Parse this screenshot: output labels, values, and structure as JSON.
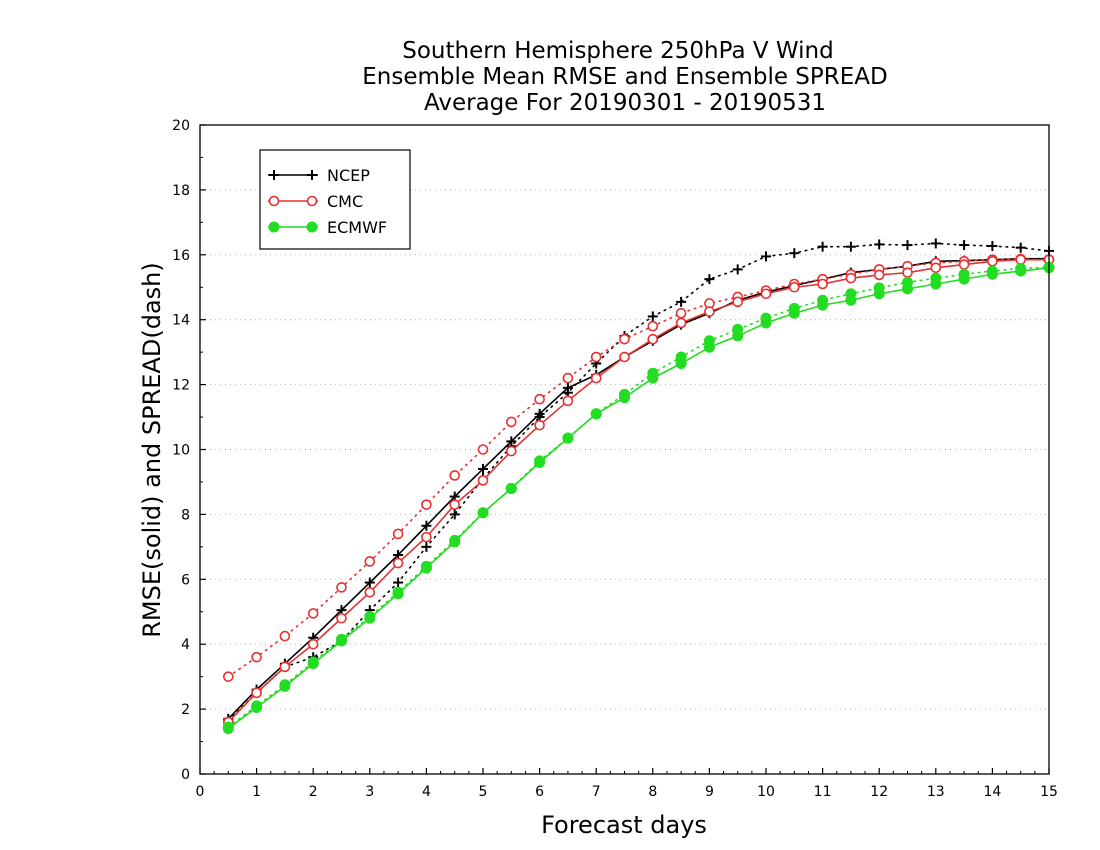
{
  "chart_data": {
    "type": "line",
    "title": [
      "Southern Hemisphere 250hPa V Wind",
      "Ensemble Mean RMSE and Ensemble SPREAD",
      "Average For 20190301 - 20190531"
    ],
    "xlabel": "Forecast days",
    "ylabel": "RMSE(solid) and SPREAD(dash)",
    "xlim": [
      0,
      15
    ],
    "ylim": [
      0,
      20
    ],
    "xticks": [
      "0",
      "1",
      "2",
      "3",
      "4",
      "5",
      "6",
      "7",
      "8",
      "9",
      "10",
      "11",
      "12",
      "13",
      "14",
      "15"
    ],
    "yticks": [
      "0",
      "2",
      "4",
      "6",
      "8",
      "10",
      "12",
      "14",
      "16",
      "18",
      "20"
    ],
    "grid": true,
    "legend_position": "top-left",
    "x": [
      0.5,
      1,
      1.5,
      2,
      2.5,
      3,
      3.5,
      4,
      4.5,
      5,
      5.5,
      6,
      6.5,
      7,
      7.5,
      8,
      8.5,
      9,
      9.5,
      10,
      10.5,
      11,
      11.5,
      12,
      12.5,
      13,
      13.5,
      14,
      14.5,
      15
    ],
    "series": [
      {
        "name": "NCEP",
        "color": "#000000",
        "marker": "plus",
        "rmse": [
          1.7,
          2.6,
          3.4,
          4.2,
          5.05,
          5.9,
          6.75,
          7.65,
          8.55,
          9.4,
          10.25,
          11.1,
          11.9,
          12.3,
          12.85,
          13.35,
          13.85,
          14.2,
          14.6,
          14.85,
          15.05,
          15.25,
          15.45,
          15.55,
          15.65,
          15.8,
          15.82,
          15.85,
          15.88,
          15.88
        ],
        "spread": [
          1.65,
          2.5,
          3.3,
          3.6,
          4.1,
          5.05,
          5.9,
          7.0,
          8.0,
          9.1,
          10.1,
          11.0,
          11.75,
          12.65,
          13.5,
          14.1,
          14.55,
          15.25,
          15.55,
          15.95,
          16.05,
          16.25,
          16.25,
          16.32,
          16.3,
          16.35,
          16.3,
          16.27,
          16.22,
          16.12
        ]
      },
      {
        "name": "CMC",
        "color": "#e83030",
        "marker": "circle-open",
        "rmse": [
          1.6,
          2.5,
          3.3,
          4.0,
          4.8,
          5.6,
          6.5,
          7.3,
          8.3,
          9.05,
          9.95,
          10.75,
          11.5,
          12.2,
          12.85,
          13.4,
          13.9,
          14.25,
          14.55,
          14.8,
          15.0,
          15.1,
          15.28,
          15.38,
          15.45,
          15.6,
          15.7,
          15.8,
          15.85,
          15.85
        ],
        "spread": [
          3.0,
          3.6,
          4.25,
          4.95,
          5.75,
          6.55,
          7.4,
          8.3,
          9.2,
          10.0,
          10.85,
          11.55,
          12.2,
          12.85,
          13.4,
          13.8,
          14.2,
          14.5,
          14.7,
          14.9,
          15.1,
          15.25,
          15.4,
          15.55,
          15.65,
          15.75,
          15.8,
          15.85,
          15.87,
          15.85
        ]
      },
      {
        "name": "ECMWF",
        "color": "#22dd22",
        "marker": "circle-filled",
        "rmse": [
          1.4,
          2.05,
          2.7,
          3.4,
          4.1,
          4.8,
          5.55,
          6.35,
          7.15,
          8.05,
          8.8,
          9.6,
          10.35,
          11.1,
          11.6,
          12.2,
          12.65,
          13.15,
          13.5,
          13.9,
          14.2,
          14.45,
          14.6,
          14.8,
          14.95,
          15.1,
          15.25,
          15.4,
          15.5,
          15.6
        ],
        "spread": [
          1.45,
          2.1,
          2.75,
          3.45,
          4.15,
          4.85,
          5.6,
          6.4,
          7.2,
          8.05,
          8.8,
          9.65,
          10.35,
          11.1,
          11.7,
          12.35,
          12.85,
          13.35,
          13.7,
          14.05,
          14.35,
          14.6,
          14.8,
          14.98,
          15.15,
          15.28,
          15.4,
          15.5,
          15.58,
          15.62
        ]
      }
    ]
  }
}
